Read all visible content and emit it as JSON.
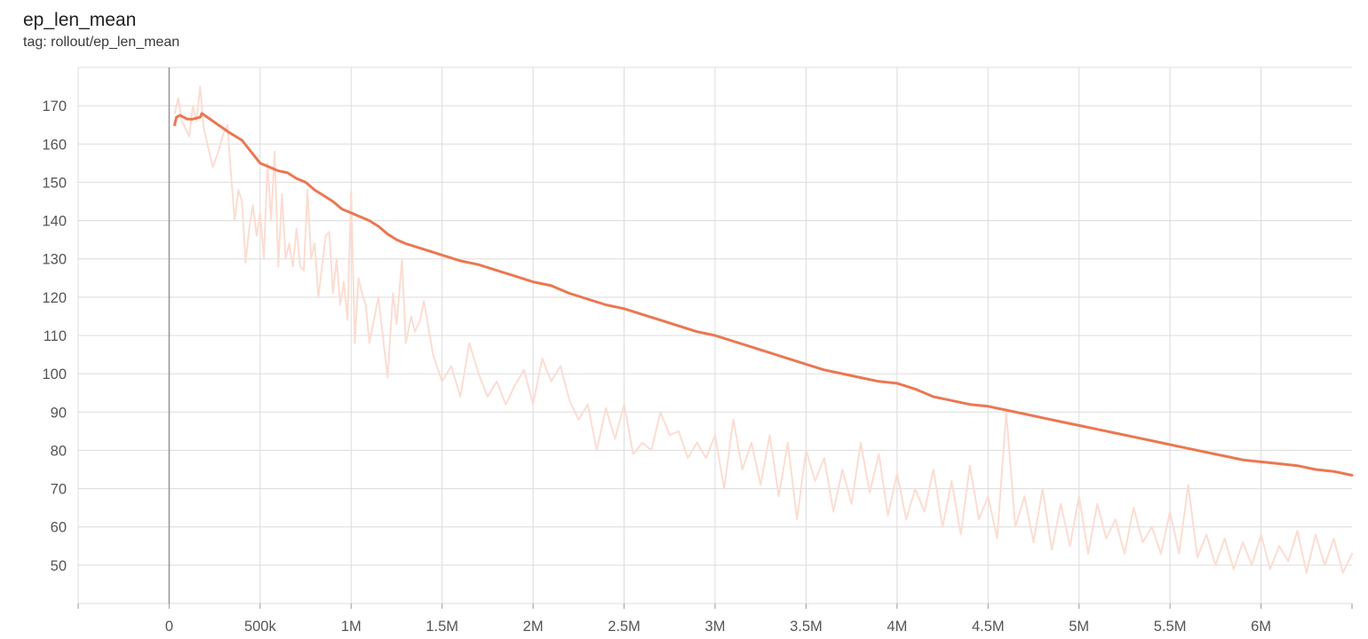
{
  "header": {
    "title": "ep_len_mean",
    "subtitle": "tag: rollout/ep_len_mean"
  },
  "colors": {
    "smoothed": "#EB7752",
    "raw": "#FBDDD2",
    "grid": "#dcdcdc",
    "axis": "#888888"
  },
  "chart_data": {
    "type": "line",
    "title": "ep_len_mean",
    "subtitle": "tag: rollout/ep_len_mean",
    "xlabel": "",
    "ylabel": "",
    "xlim": [
      -500000,
      6500000
    ],
    "ylim": [
      40,
      180
    ],
    "grid": true,
    "x_ticks": [
      {
        "value": 0,
        "label": "0"
      },
      {
        "value": 500000,
        "label": "500k"
      },
      {
        "value": 1000000,
        "label": "1M"
      },
      {
        "value": 1500000,
        "label": "1.5M"
      },
      {
        "value": 2000000,
        "label": "2M"
      },
      {
        "value": 2500000,
        "label": "2.5M"
      },
      {
        "value": 3000000,
        "label": "3M"
      },
      {
        "value": 3500000,
        "label": "3.5M"
      },
      {
        "value": 4000000,
        "label": "4M"
      },
      {
        "value": 4500000,
        "label": "4.5M"
      },
      {
        "value": 5000000,
        "label": "5M"
      },
      {
        "value": 5500000,
        "label": "5.5M"
      },
      {
        "value": 6000000,
        "label": "6M"
      }
    ],
    "y_ticks": [
      {
        "value": 50,
        "label": "50"
      },
      {
        "value": 60,
        "label": "60"
      },
      {
        "value": 70,
        "label": "70"
      },
      {
        "value": 80,
        "label": "80"
      },
      {
        "value": 90,
        "label": "90"
      },
      {
        "value": 100,
        "label": "100"
      },
      {
        "value": 110,
        "label": "110"
      },
      {
        "value": 120,
        "label": "120"
      },
      {
        "value": 130,
        "label": "130"
      },
      {
        "value": 140,
        "label": "140"
      },
      {
        "value": 150,
        "label": "150"
      },
      {
        "value": 160,
        "label": "160"
      },
      {
        "value": 170,
        "label": "170"
      }
    ],
    "series": [
      {
        "role": "smoothed",
        "color": "#EB7752",
        "x": [
          30000,
          40000,
          60000,
          100000,
          130000,
          170000,
          180000,
          210000,
          300000,
          330000,
          400000,
          450000,
          500000,
          600000,
          650000,
          700000,
          750000,
          800000,
          850000,
          900000,
          950000,
          1000000,
          1050000,
          1100000,
          1150000,
          1200000,
          1250000,
          1300000,
          1400000,
          1500000,
          1600000,
          1700000,
          1800000,
          1900000,
          2000000,
          2100000,
          2200000,
          2300000,
          2400000,
          2500000,
          2600000,
          2700000,
          2800000,
          2900000,
          3000000,
          3100000,
          3200000,
          3300000,
          3400000,
          3500000,
          3600000,
          3700000,
          3800000,
          3900000,
          4000000,
          4100000,
          4200000,
          4300000,
          4400000,
          4500000,
          4600000,
          4700000,
          4800000,
          4900000,
          5000000,
          5100000,
          5200000,
          5300000,
          5400000,
          5500000,
          5600000,
          5700000,
          5800000,
          5900000,
          6000000,
          6100000,
          6200000,
          6300000,
          6400000,
          6500000
        ],
        "values": [
          165,
          167,
          167.5,
          166.5,
          166.5,
          167,
          168,
          167,
          164,
          163,
          161,
          158,
          155,
          153,
          152.5,
          151,
          150,
          148,
          146.5,
          145,
          143,
          142,
          141,
          140,
          138.5,
          136.5,
          135,
          134,
          132.5,
          131,
          129.5,
          128.5,
          127,
          125.5,
          124,
          123,
          121,
          119.5,
          118,
          117,
          115.5,
          114,
          112.5,
          111,
          110,
          108.5,
          107,
          105.5,
          104,
          102.5,
          101,
          100,
          99,
          98,
          97.5,
          96,
          94,
          93,
          92,
          91.5,
          90.5,
          89.5,
          88.5,
          87.5,
          86.5,
          85.5,
          84.5,
          83.5,
          82.5,
          81.5,
          80.5,
          79.5,
          78.5,
          77.5,
          77,
          76.5,
          76,
          75,
          74.5,
          73.5
        ]
      },
      {
        "role": "raw",
        "color": "#FBDDD2",
        "x": [
          30000,
          50000,
          70000,
          90000,
          110000,
          130000,
          150000,
          170000,
          190000,
          210000,
          240000,
          270000,
          300000,
          320000,
          340000,
          360000,
          380000,
          400000,
          420000,
          440000,
          460000,
          480000,
          500000,
          520000,
          540000,
          560000,
          580000,
          600000,
          620000,
          640000,
          660000,
          680000,
          700000,
          720000,
          740000,
          760000,
          780000,
          800000,
          820000,
          840000,
          860000,
          880000,
          900000,
          920000,
          940000,
          960000,
          980000,
          1000000,
          1020000,
          1040000,
          1060000,
          1080000,
          1100000,
          1150000,
          1200000,
          1230000,
          1250000,
          1280000,
          1300000,
          1330000,
          1350000,
          1380000,
          1400000,
          1450000,
          1500000,
          1550000,
          1600000,
          1650000,
          1700000,
          1750000,
          1800000,
          1850000,
          1900000,
          1950000,
          2000000,
          2050000,
          2100000,
          2150000,
          2200000,
          2250000,
          2300000,
          2350000,
          2400000,
          2450000,
          2500000,
          2550000,
          2600000,
          2650000,
          2700000,
          2750000,
          2800000,
          2850000,
          2900000,
          2950000,
          3000000,
          3050000,
          3100000,
          3150000,
          3200000,
          3250000,
          3300000,
          3350000,
          3400000,
          3450000,
          3500000,
          3550000,
          3600000,
          3650000,
          3700000,
          3750000,
          3800000,
          3850000,
          3900000,
          3950000,
          4000000,
          4050000,
          4100000,
          4150000,
          4200000,
          4250000,
          4300000,
          4350000,
          4400000,
          4450000,
          4500000,
          4550000,
          4600000,
          4650000,
          4700000,
          4750000,
          4800000,
          4850000,
          4900000,
          4950000,
          5000000,
          5050000,
          5100000,
          5150000,
          5200000,
          5250000,
          5300000,
          5350000,
          5400000,
          5450000,
          5500000,
          5550000,
          5600000,
          5650000,
          5700000,
          5750000,
          5800000,
          5850000,
          5900000,
          5950000,
          6000000,
          6050000,
          6100000,
          6150000,
          6200000,
          6250000,
          6300000,
          6350000,
          6400000,
          6450000,
          6500000
        ],
        "values": [
          168,
          172,
          166,
          164,
          162,
          170,
          166,
          175,
          164,
          160,
          154,
          158,
          163,
          165,
          152,
          140,
          148,
          145,
          129,
          138,
          144,
          136,
          142,
          130,
          155,
          140,
          158,
          128,
          147,
          130,
          134,
          128,
          138,
          128,
          127,
          148,
          130,
          134,
          120,
          128,
          136,
          137,
          121,
          130,
          118,
          124,
          114,
          148,
          108,
          125,
          121,
          118,
          108,
          120,
          99,
          121,
          113,
          130,
          108,
          115,
          111,
          114,
          119,
          105,
          98,
          102,
          94,
          108,
          100,
          94,
          98,
          92,
          97,
          101,
          92,
          104,
          98,
          102,
          93,
          88,
          92,
          80,
          91,
          83,
          92,
          79,
          82,
          80,
          90,
          84,
          85,
          78,
          82,
          78,
          84,
          70,
          88,
          75,
          82,
          71,
          84,
          68,
          82,
          62,
          80,
          72,
          78,
          64,
          75,
          66,
          82,
          69,
          79,
          63,
          74,
          62,
          70,
          64,
          75,
          60,
          72,
          58,
          76,
          62,
          68,
          57,
          90,
          60,
          68,
          56,
          70,
          54,
          66,
          55,
          68,
          53,
          66,
          57,
          62,
          53,
          65,
          56,
          60,
          53,
          64,
          53,
          71,
          52,
          58,
          50,
          57,
          49,
          56,
          50,
          58,
          49,
          55,
          51,
          59,
          48,
          58,
          50,
          57,
          48,
          53
        ]
      }
    ]
  }
}
